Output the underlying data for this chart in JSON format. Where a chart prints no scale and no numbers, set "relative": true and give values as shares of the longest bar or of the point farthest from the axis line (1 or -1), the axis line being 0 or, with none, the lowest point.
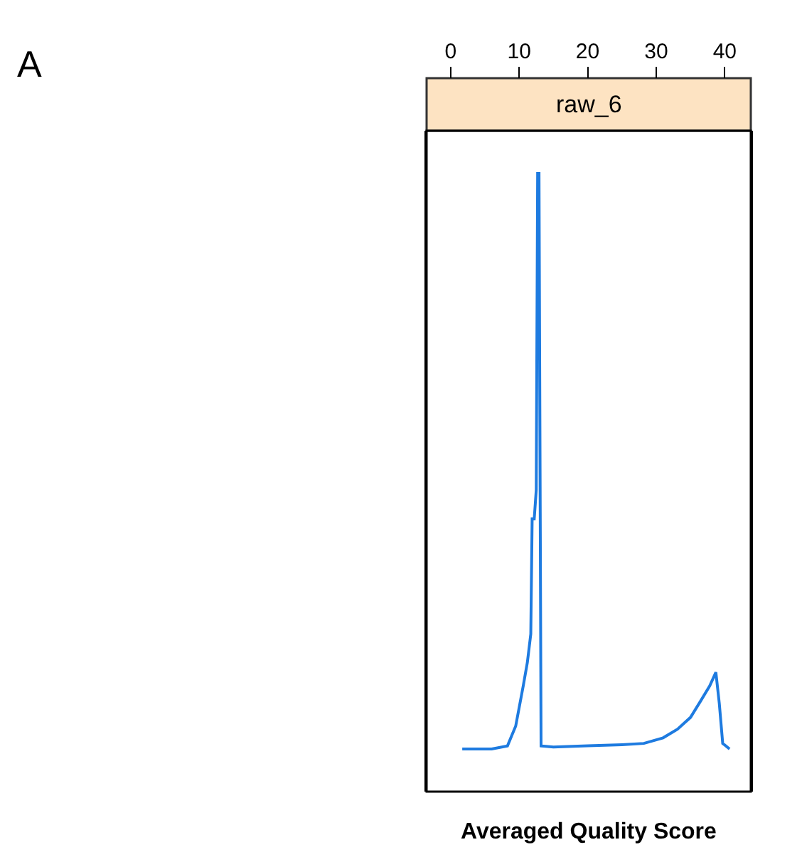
{
  "chart_data": {
    "type": "line",
    "title": "raw_6",
    "xlabel": "Averaged Quality Score",
    "annotations": [
      "A"
    ],
    "relative": true,
    "tick_labels": "x",
    "xlim": [
      -3.5,
      43.8
    ],
    "xticks": [
      0,
      10,
      20,
      30,
      40
    ],
    "series": [
      {
        "color": "#1e7be0",
        "x": [
          1.7,
          6,
          8.3,
          9.5,
          10.6,
          11.2,
          11.7,
          11.9,
          12.2,
          12.5,
          12.7,
          12.9,
          13.2,
          15,
          20,
          25,
          28.2,
          31,
          33.1,
          35,
          36.5,
          37.8,
          38.7,
          39.2,
          39.7,
          40.7
        ],
        "values": [
          0.069,
          0.069,
          0.074,
          0.106,
          0.171,
          0.209,
          0.255,
          0.441,
          0.441,
          0.488,
          1,
          1,
          0.074,
          0.072,
          0.074,
          0.076,
          0.078,
          0.087,
          0.101,
          0.12,
          0.147,
          0.171,
          0.193,
          0.143,
          0.078,
          0.069
        ]
      }
    ]
  }
}
